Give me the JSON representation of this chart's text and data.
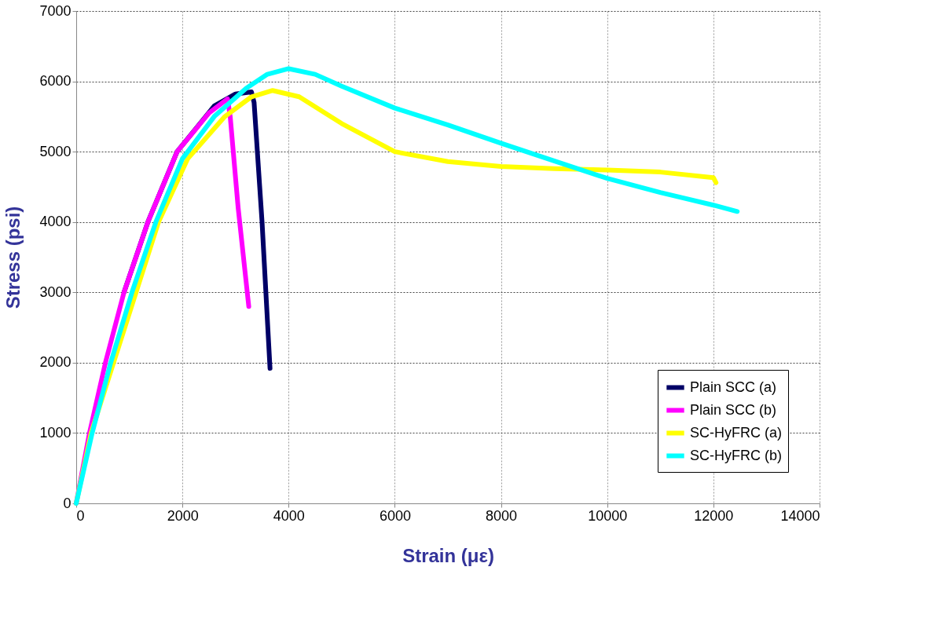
{
  "chart_data": {
    "type": "line",
    "xlabel": "Strain (με)",
    "ylabel": "Stress (psi)",
    "xlim": [
      0,
      14000
    ],
    "xticks": [
      0,
      2000,
      4000,
      6000,
      8000,
      10000,
      12000,
      14000
    ],
    "ylim": [
      0,
      7000
    ],
    "yticks": [
      0,
      1000,
      2000,
      3000,
      4000,
      5000,
      6000,
      7000
    ],
    "grid": true,
    "legend": "bottom right",
    "marker": "none",
    "line_style": "solid",
    "series": [
      {
        "name": "Plain SCC (a)",
        "color": "#000066",
        "x": [
          900,
          1350,
          1900,
          2600,
          3000,
          3300,
          3350,
          3500,
          3650
        ],
        "values": [
          3000,
          4000,
          5000,
          5650,
          5820,
          5850,
          5700,
          4000,
          1920
        ]
      },
      {
        "name": "Plain SCC (b)",
        "color": "#ff00ff",
        "x": [
          0,
          250,
          550,
          900,
          1350,
          1900,
          2500,
          2850,
          2900,
          3050,
          3250
        ],
        "values": [
          0,
          1000,
          2000,
          3000,
          4000,
          5000,
          5550,
          5750,
          5500,
          4200,
          2800
        ]
      },
      {
        "name": "SC-HyFRC (a)",
        "color": "#ffff00",
        "x": [
          0,
          280,
          1550,
          2100,
          2800,
          3300,
          3700,
          4200,
          5000,
          6000,
          7000,
          8000,
          9000,
          10000,
          11000,
          12000,
          12050
        ],
        "values": [
          0,
          1000,
          4000,
          4900,
          5500,
          5780,
          5870,
          5780,
          5400,
          5000,
          4860,
          4790,
          4760,
          4740,
          4710,
          4630,
          4560
        ]
      },
      {
        "name": "SC-HyFRC (b)",
        "color": "#00ffff",
        "x": [
          0,
          300,
          650,
          1050,
          1500,
          2000,
          2600,
          3200,
          3600,
          4000,
          4500,
          5000,
          6000,
          7000,
          8000,
          9000,
          10000,
          11000,
          12000,
          12450
        ],
        "values": [
          0,
          1000,
          2000,
          3000,
          4000,
          4900,
          5500,
          5900,
          6100,
          6180,
          6100,
          5930,
          5620,
          5380,
          5120,
          4870,
          4620,
          4420,
          4240,
          4150
        ]
      }
    ]
  }
}
